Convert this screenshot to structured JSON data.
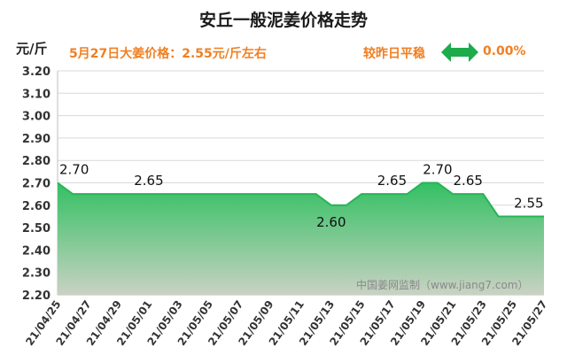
{
  "header": {
    "title": "安丘一般泥姜价格走势",
    "unit": "元/斤",
    "headline": "5月27日大姜价格：2.55元/斤左右",
    "compare_label": "较昨日平稳",
    "compare_value": "0.00%"
  },
  "watermark": "中国姜网监制（www.jiang7.com）",
  "colors": {
    "title": "#1a1a1a",
    "accent": "#f07f22",
    "line": "#27b457",
    "arrow": "#1dab4b"
  },
  "chart_data": {
    "type": "area",
    "title": "安丘一般泥姜价格走势",
    "ylabel": "元/斤",
    "xlabel": "",
    "ylim": [
      2.2,
      3.2
    ],
    "yticks": [
      "3.20",
      "3.10",
      "3.00",
      "2.90",
      "2.80",
      "2.70",
      "2.60",
      "2.50",
      "2.40",
      "2.30",
      "2.20"
    ],
    "xticks": [
      "21/04/25",
      "21/04/27",
      "21/04/29",
      "21/05/01",
      "21/05/03",
      "21/05/05",
      "21/05/07",
      "21/05/09",
      "21/05/11",
      "21/05/13",
      "21/05/15",
      "21/05/17",
      "21/05/19",
      "21/05/21",
      "21/05/23",
      "21/05/25",
      "21/05/27"
    ],
    "x": [
      "21/04/25",
      "21/04/26",
      "21/04/27",
      "21/04/28",
      "21/04/29",
      "21/04/30",
      "21/05/01",
      "21/05/02",
      "21/05/03",
      "21/05/04",
      "21/05/05",
      "21/05/06",
      "21/05/07",
      "21/05/08",
      "21/05/09",
      "21/05/10",
      "21/05/11",
      "21/05/12",
      "21/05/13",
      "21/05/14",
      "21/05/15",
      "21/05/16",
      "21/05/17",
      "21/05/18",
      "21/05/19",
      "21/05/20",
      "21/05/21",
      "21/05/22",
      "21/05/23",
      "21/05/24",
      "21/05/25",
      "21/05/26",
      "21/05/27"
    ],
    "values": [
      2.7,
      2.65,
      2.65,
      2.65,
      2.65,
      2.65,
      2.65,
      2.65,
      2.65,
      2.65,
      2.65,
      2.65,
      2.65,
      2.65,
      2.65,
      2.65,
      2.65,
      2.65,
      2.6,
      2.6,
      2.65,
      2.65,
      2.65,
      2.65,
      2.7,
      2.7,
      2.65,
      2.65,
      2.65,
      2.55,
      2.55,
      2.55,
      2.55
    ],
    "data_labels": [
      {
        "x": "21/04/25",
        "text": "2.70"
      },
      {
        "x": "21/05/01",
        "text": "2.65"
      },
      {
        "x": "21/05/13",
        "text": "2.60"
      },
      {
        "x": "21/05/17",
        "text": "2.65"
      },
      {
        "x": "21/05/20",
        "text": "2.70"
      },
      {
        "x": "21/05/22",
        "text": "2.65"
      },
      {
        "x": "21/05/26",
        "text": "2.55"
      }
    ],
    "grid": true
  }
}
